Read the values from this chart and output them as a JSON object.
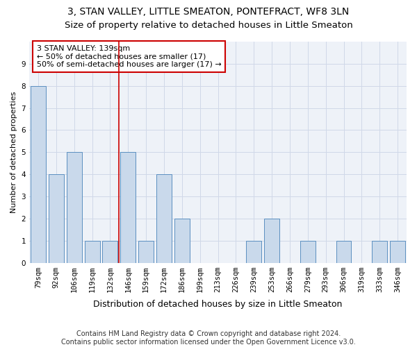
{
  "title": "3, STAN VALLEY, LITTLE SMEATON, PONTEFRACT, WF8 3LN",
  "subtitle": "Size of property relative to detached houses in Little Smeaton",
  "xlabel": "Distribution of detached houses by size in Little Smeaton",
  "ylabel": "Number of detached properties",
  "categories": [
    "79sqm",
    "92sqm",
    "106sqm",
    "119sqm",
    "132sqm",
    "146sqm",
    "159sqm",
    "172sqm",
    "186sqm",
    "199sqm",
    "213sqm",
    "226sqm",
    "239sqm",
    "253sqm",
    "266sqm",
    "279sqm",
    "293sqm",
    "306sqm",
    "319sqm",
    "333sqm",
    "346sqm"
  ],
  "values": [
    8,
    4,
    5,
    1,
    1,
    5,
    1,
    4,
    2,
    0,
    0,
    0,
    1,
    2,
    0,
    1,
    0,
    1,
    0,
    1,
    1
  ],
  "bar_color": "#c9d9eb",
  "bar_edge_color": "#5a8fc0",
  "vline_index": 4,
  "vline_color": "#cc0000",
  "annotation_line1": "3 STAN VALLEY: 139sqm",
  "annotation_line2": "← 50% of detached houses are smaller (17)",
  "annotation_line3": "50% of semi-detached houses are larger (17) →",
  "annotation_box_color": "#ffffff",
  "annotation_box_edge_color": "#cc0000",
  "ylim": [
    0,
    10
  ],
  "yticks": [
    0,
    1,
    2,
    3,
    4,
    5,
    6,
    7,
    8,
    9
  ],
  "grid_color": "#d0d8e8",
  "bg_color": "#eef2f8",
  "footer_text": "Contains HM Land Registry data © Crown copyright and database right 2024.\nContains public sector information licensed under the Open Government Licence v3.0.",
  "title_fontsize": 10,
  "subtitle_fontsize": 9.5,
  "xlabel_fontsize": 9,
  "ylabel_fontsize": 8,
  "tick_fontsize": 7.5,
  "annotation_fontsize": 8,
  "footer_fontsize": 7
}
